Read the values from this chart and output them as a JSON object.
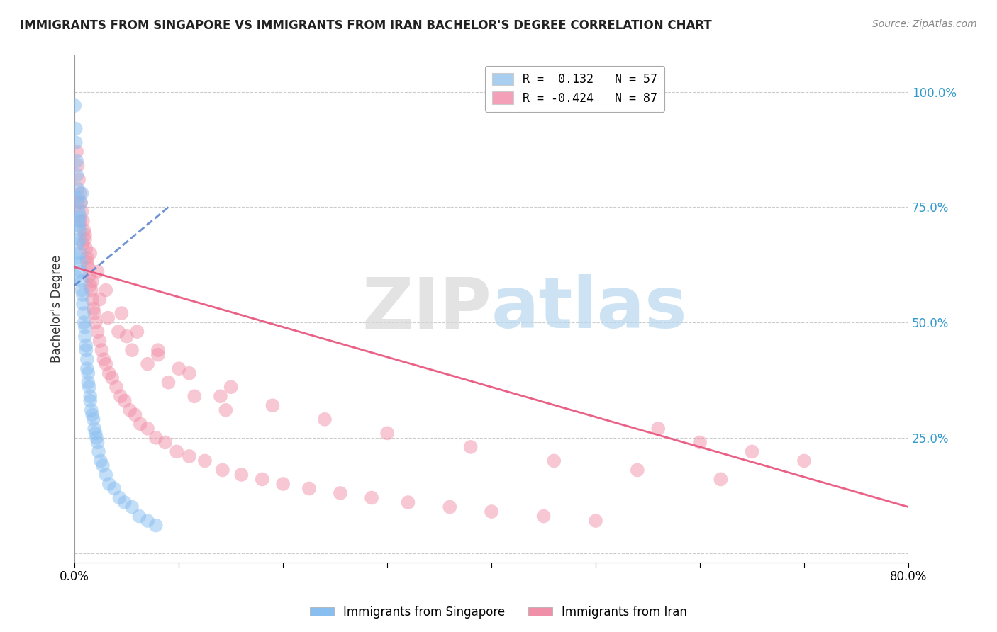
{
  "title": "IMMIGRANTS FROM SINGAPORE VS IMMIGRANTS FROM IRAN BACHELOR'S DEGREE CORRELATION CHART",
  "source": "Source: ZipAtlas.com",
  "ylabel": "Bachelor's Degree",
  "yticks": [
    0.0,
    0.25,
    0.5,
    0.75,
    1.0
  ],
  "ytick_labels_right": [
    "",
    "25.0%",
    "50.0%",
    "75.0%",
    "100.0%"
  ],
  "xlim": [
    0.0,
    0.8
  ],
  "ylim": [
    -0.02,
    1.08
  ],
  "legend_entries": [
    {
      "color": "#a8cef0",
      "label": "Immigrants from Singapore",
      "R": 0.132,
      "N": 57
    },
    {
      "color": "#f4a0b8",
      "label": "Immigrants from Iran",
      "R": -0.424,
      "N": 87
    }
  ],
  "singapore_color": "#88bef0",
  "iran_color": "#f090a8",
  "singapore_trend_color": "#5580cc",
  "iran_trend_color": "#e8507a",
  "watermark_zip": "ZIP",
  "watermark_atlas": "atlas",
  "watermark_color_zip": "#d8d8d8",
  "watermark_color_atlas": "#b8d8f0",
  "background_color": "#ffffff",
  "sg_trend_x0": 0.0,
  "sg_trend_y0": 0.58,
  "sg_trend_x1": 0.09,
  "sg_trend_y1": 0.75,
  "iran_trend_x0": 0.0,
  "iran_trend_y0": 0.62,
  "iran_trend_x1": 0.8,
  "iran_trend_y1": 0.1,
  "singapore_points_x": [
    0.0,
    0.001,
    0.001,
    0.002,
    0.002,
    0.003,
    0.003,
    0.004,
    0.004,
    0.005,
    0.005,
    0.005,
    0.006,
    0.006,
    0.007,
    0.007,
    0.008,
    0.008,
    0.009,
    0.009,
    0.01,
    0.01,
    0.011,
    0.011,
    0.012,
    0.012,
    0.013,
    0.013,
    0.014,
    0.015,
    0.015,
    0.016,
    0.017,
    0.018,
    0.019,
    0.02,
    0.021,
    0.022,
    0.023,
    0.025,
    0.027,
    0.03,
    0.033,
    0.038,
    0.043,
    0.048,
    0.055,
    0.062,
    0.07,
    0.078,
    0.001,
    0.002,
    0.003,
    0.004,
    0.005,
    0.006,
    0.007
  ],
  "singapore_points_y": [
    0.97,
    0.92,
    0.89,
    0.85,
    0.82,
    0.79,
    0.77,
    0.74,
    0.72,
    0.7,
    0.68,
    0.65,
    0.63,
    0.61,
    0.59,
    0.57,
    0.56,
    0.54,
    0.52,
    0.5,
    0.49,
    0.47,
    0.45,
    0.44,
    0.42,
    0.4,
    0.39,
    0.37,
    0.36,
    0.34,
    0.33,
    0.31,
    0.3,
    0.29,
    0.27,
    0.26,
    0.25,
    0.24,
    0.22,
    0.2,
    0.19,
    0.17,
    0.15,
    0.14,
    0.12,
    0.11,
    0.1,
    0.08,
    0.07,
    0.06,
    0.6,
    0.64,
    0.67,
    0.71,
    0.73,
    0.76,
    0.78
  ],
  "iran_points_x": [
    0.002,
    0.003,
    0.004,
    0.005,
    0.006,
    0.007,
    0.008,
    0.009,
    0.01,
    0.011,
    0.012,
    0.013,
    0.014,
    0.015,
    0.016,
    0.017,
    0.018,
    0.019,
    0.02,
    0.022,
    0.024,
    0.026,
    0.028,
    0.03,
    0.033,
    0.036,
    0.04,
    0.044,
    0.048,
    0.053,
    0.058,
    0.063,
    0.07,
    0.078,
    0.087,
    0.098,
    0.11,
    0.125,
    0.142,
    0.16,
    0.18,
    0.2,
    0.225,
    0.255,
    0.285,
    0.32,
    0.36,
    0.4,
    0.45,
    0.5,
    0.003,
    0.005,
    0.008,
    0.012,
    0.017,
    0.024,
    0.032,
    0.042,
    0.055,
    0.07,
    0.09,
    0.115,
    0.145,
    0.01,
    0.015,
    0.022,
    0.03,
    0.045,
    0.06,
    0.08,
    0.1,
    0.14,
    0.56,
    0.6,
    0.65,
    0.7,
    0.05,
    0.08,
    0.11,
    0.15,
    0.19,
    0.24,
    0.3,
    0.38,
    0.46,
    0.54,
    0.62
  ],
  "iran_points_y": [
    0.87,
    0.84,
    0.81,
    0.78,
    0.76,
    0.74,
    0.72,
    0.7,
    0.68,
    0.66,
    0.64,
    0.62,
    0.6,
    0.58,
    0.57,
    0.55,
    0.53,
    0.52,
    0.5,
    0.48,
    0.46,
    0.44,
    0.42,
    0.41,
    0.39,
    0.38,
    0.36,
    0.34,
    0.33,
    0.31,
    0.3,
    0.28,
    0.27,
    0.25,
    0.24,
    0.22,
    0.21,
    0.2,
    0.18,
    0.17,
    0.16,
    0.15,
    0.14,
    0.13,
    0.12,
    0.11,
    0.1,
    0.09,
    0.08,
    0.07,
    0.76,
    0.72,
    0.67,
    0.63,
    0.59,
    0.55,
    0.51,
    0.48,
    0.44,
    0.41,
    0.37,
    0.34,
    0.31,
    0.69,
    0.65,
    0.61,
    0.57,
    0.52,
    0.48,
    0.44,
    0.4,
    0.34,
    0.27,
    0.24,
    0.22,
    0.2,
    0.47,
    0.43,
    0.39,
    0.36,
    0.32,
    0.29,
    0.26,
    0.23,
    0.2,
    0.18,
    0.16
  ]
}
